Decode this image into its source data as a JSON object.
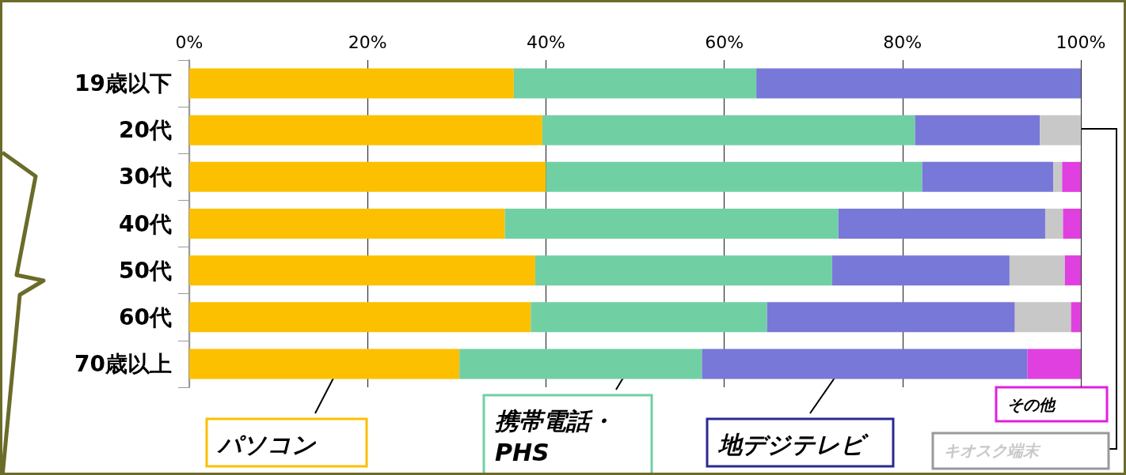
{
  "chart_data": {
    "type": "bar",
    "orientation": "horizontal",
    "stacked": true,
    "categories": [
      "19歳以下",
      "20代",
      "30代",
      "40代",
      "50代",
      "60代",
      "70歳以上"
    ],
    "series": [
      {
        "name": "パソコン",
        "color": "#fcc000",
        "values": [
          36.4,
          39.6,
          40.0,
          35.4,
          38.8,
          38.3,
          30.3
        ]
      },
      {
        "name": "携帯電話・PHS",
        "color": "#70d0a4",
        "values": [
          27.2,
          41.8,
          42.2,
          37.4,
          33.3,
          26.5,
          27.2
        ]
      },
      {
        "name": "地デジテレビ",
        "color": "#7878d8",
        "values": [
          36.4,
          14.0,
          14.7,
          23.2,
          19.9,
          27.8,
          36.5
        ]
      },
      {
        "name": "キオスク端末",
        "color": "#c8c8c8",
        "values": [
          0,
          4.6,
          1.0,
          2.0,
          6.2,
          6.3,
          0
        ]
      },
      {
        "name": "その他",
        "color": "#e040e0",
        "values": [
          0,
          0,
          2.1,
          2.0,
          1.8,
          1.1,
          6.0
        ]
      }
    ],
    "xlim": [
      0,
      100
    ],
    "xticks": [
      {
        "value": 0,
        "label": "0%"
      },
      {
        "value": 20,
        "label": "20%"
      },
      {
        "value": 40,
        "label": "40%"
      },
      {
        "value": 60,
        "label": "60%"
      },
      {
        "value": 80,
        "label": "80%"
      },
      {
        "value": 100,
        "label": "100%"
      }
    ],
    "grid": "x",
    "legend": "bottom"
  }
}
